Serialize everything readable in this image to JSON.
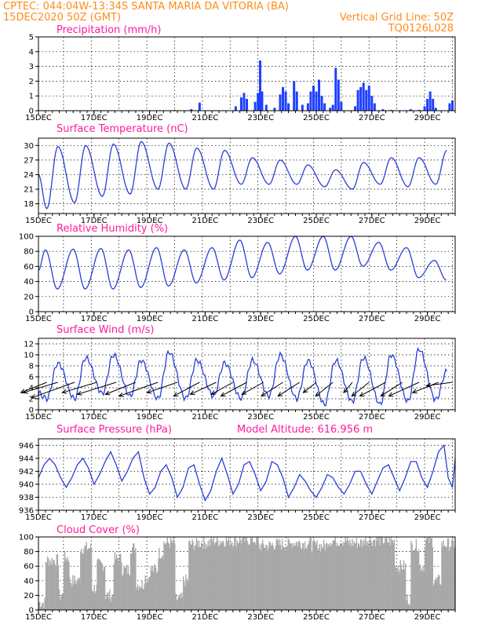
{
  "header": {
    "station": "CPTEC:   044:04W-13:34S   SANTA MARIA DA VITORIA (BA)",
    "date": "15DEC2020 50Z (GMT)",
    "grid_note": "Vertical Grid Line: 50Z",
    "code": "TQ0126L028"
  },
  "colors": {
    "title": "#ff1a9c",
    "header": "#ff8c1a",
    "line": "#2a3fd8",
    "precip": "#1f3fff",
    "cloud": "#a8a8a8"
  },
  "chart_data": [
    {
      "type": "bar",
      "title": "Precipitation (mm/h)",
      "ylim": [
        0,
        5
      ],
      "yticks": [
        0,
        1,
        2,
        3,
        4,
        5
      ],
      "xticks": [
        "15DEC",
        "17DEC",
        "19DEC",
        "21DEC",
        "23DEC",
        "25DEC",
        "27DEC",
        "29DEC"
      ],
      "x_start_day": 15.1,
      "x_end_day": 30.1,
      "events": [
        [
          20.0,
          0.05
        ],
        [
          20.6,
          0.1
        ],
        [
          20.9,
          0.55
        ],
        [
          22.2,
          0.3
        ],
        [
          22.4,
          0.9
        ],
        [
          22.5,
          1.2
        ],
        [
          22.6,
          0.8
        ],
        [
          22.9,
          0.6
        ],
        [
          23.0,
          1.2
        ],
        [
          23.08,
          3.4
        ],
        [
          23.15,
          1.3
        ],
        [
          23.3,
          0.4
        ],
        [
          23.6,
          0.2
        ],
        [
          23.8,
          1.1
        ],
        [
          23.9,
          1.6
        ],
        [
          24.0,
          1.3
        ],
        [
          24.1,
          0.5
        ],
        [
          24.3,
          2.0
        ],
        [
          24.4,
          1.3
        ],
        [
          24.6,
          0.4
        ],
        [
          24.8,
          0.5
        ],
        [
          24.9,
          1.3
        ],
        [
          25.0,
          1.7
        ],
        [
          25.1,
          1.3
        ],
        [
          25.2,
          2.1
        ],
        [
          25.3,
          1.0
        ],
        [
          25.4,
          0.5
        ],
        [
          25.6,
          0.2
        ],
        [
          25.7,
          0.4
        ],
        [
          25.8,
          2.9
        ],
        [
          25.9,
          2.1
        ],
        [
          26.0,
          0.6
        ],
        [
          26.5,
          0.3
        ],
        [
          26.6,
          1.4
        ],
        [
          26.7,
          1.6
        ],
        [
          26.8,
          1.9
        ],
        [
          26.9,
          1.4
        ],
        [
          27.0,
          1.7
        ],
        [
          27.1,
          1.0
        ],
        [
          27.2,
          0.5
        ],
        [
          27.5,
          0.1
        ],
        [
          27.8,
          0.05
        ],
        [
          28.5,
          0.1
        ],
        [
          28.8,
          0.05
        ],
        [
          29.0,
          0.3
        ],
        [
          29.1,
          0.8
        ],
        [
          29.2,
          1.3
        ],
        [
          29.3,
          0.8
        ],
        [
          29.4,
          0.2
        ],
        [
          29.9,
          0.5
        ],
        [
          30.0,
          0.7
        ]
      ]
    },
    {
      "type": "line",
      "title": "Surface Temperature (nC)",
      "ylim": [
        16,
        31.5
      ],
      "yticks": [
        18,
        21,
        24,
        27,
        30
      ],
      "xticks": [
        "15DEC",
        "17DEC",
        "19DEC",
        "21DEC",
        "23DEC",
        "25DEC",
        "27DEC",
        "29DEC"
      ],
      "x_start_day": 15.1,
      "x_end_day": 30.1,
      "daily_min": [
        17.0,
        18.2,
        19.5,
        20.0,
        21.0,
        21.0,
        21.0,
        22.0,
        22.0,
        22.0,
        21.5,
        21.0,
        22.0,
        21.5,
        22.0
      ],
      "daily_max": [
        29.8,
        30.0,
        30.3,
        30.8,
        30.5,
        29.5,
        29.0,
        27.5,
        27.0,
        26.0,
        25.0,
        26.5,
        27.5,
        27.5,
        29.0
      ],
      "start_value": 24.0
    },
    {
      "type": "line",
      "title": "Relative Humidity (%)",
      "ylim": [
        0,
        100
      ],
      "yticks": [
        0,
        20,
        40,
        60,
        80,
        100
      ],
      "xticks": [
        "15DEC",
        "17DEC",
        "19DEC",
        "21DEC",
        "23DEC",
        "25DEC",
        "27DEC",
        "29DEC"
      ],
      "x_start_day": 15.1,
      "x_end_day": 30.1,
      "daily_min": [
        30,
        30,
        30,
        32,
        34,
        38,
        42,
        45,
        50,
        55,
        55,
        60,
        55,
        45,
        42
      ],
      "daily_max": [
        82,
        83,
        84,
        82,
        85,
        82,
        85,
        95,
        92,
        100,
        100,
        100,
        92,
        85,
        68
      ],
      "start_value": 55
    },
    {
      "type": "line",
      "title": "Surface Wind (m/s)",
      "ylim": [
        0,
        13
      ],
      "yticks": [
        0,
        2,
        4,
        6,
        8,
        10,
        12
      ],
      "xticks": [
        "15DEC",
        "17DEC",
        "19DEC",
        "21DEC",
        "23DEC",
        "25DEC",
        "27DEC",
        "29DEC"
      ],
      "x_start_day": 15.1,
      "x_end_day": 30.1,
      "daily_min": [
        2.0,
        2.0,
        3.0,
        2.5,
        2.0,
        2.0,
        2.5,
        2.0,
        2.5,
        2.0,
        1.0,
        1.5,
        1.0,
        1.5,
        1.8
      ],
      "daily_max": [
        8.5,
        9.5,
        10.0,
        9.0,
        10.5,
        9.0,
        8.5,
        9.0,
        10.0,
        9.0,
        9.0,
        9.5,
        10.0,
        11.0,
        7.0
      ],
      "start_value": 3.0,
      "vectors": [
        [
          15.4,
          5,
          6,
          6
        ],
        [
          15.8,
          5,
          8,
          6
        ],
        [
          16.4,
          5,
          10,
          9
        ],
        [
          17.2,
          5,
          8,
          6
        ],
        [
          17.9,
          5,
          9,
          7
        ],
        [
          18.6,
          5,
          7,
          7
        ],
        [
          19.4,
          5,
          9,
          8
        ],
        [
          20.1,
          5,
          7,
          6
        ],
        [
          20.9,
          5,
          6,
          8
        ],
        [
          21.5,
          5,
          6,
          7
        ],
        [
          22.1,
          5,
          5,
          7
        ],
        [
          22.6,
          5,
          6,
          8
        ],
        [
          23.2,
          5,
          5,
          7
        ],
        [
          23.9,
          5,
          5,
          8
        ],
        [
          24.5,
          5,
          5,
          8
        ],
        [
          25.1,
          5,
          3,
          6
        ],
        [
          25.7,
          5,
          4,
          8
        ],
        [
          26.4,
          5,
          2,
          6
        ],
        [
          27.0,
          5,
          4,
          8
        ],
        [
          27.6,
          5,
          6,
          8
        ],
        [
          28.2,
          5,
          5,
          8
        ],
        [
          28.8,
          5,
          7,
          8
        ],
        [
          29.5,
          5,
          6,
          6
        ],
        [
          30.0,
          5,
          6,
          2
        ]
      ]
    },
    {
      "type": "line",
      "title": "Surface Pressure (hPa)",
      "annotation": "Model Altitude: 616.956  m",
      "ylim": [
        936,
        947
      ],
      "yticks": [
        936,
        938,
        940,
        942,
        944,
        946
      ],
      "xticks": [
        "15DEC",
        "17DEC",
        "19DEC",
        "21DEC",
        "23DEC",
        "25DEC",
        "27DEC",
        "29DEC"
      ],
      "x_start_day": 15.1,
      "x_end_day": 30.1,
      "series": [
        [
          15.1,
          941
        ],
        [
          15.3,
          943
        ],
        [
          15.5,
          944
        ],
        [
          15.7,
          943
        ],
        [
          15.9,
          941
        ],
        [
          16.1,
          939.5
        ],
        [
          16.3,
          941
        ],
        [
          16.5,
          943
        ],
        [
          16.7,
          944
        ],
        [
          16.9,
          942.5
        ],
        [
          17.1,
          940
        ],
        [
          17.3,
          941.5
        ],
        [
          17.5,
          943.5
        ],
        [
          17.7,
          945
        ],
        [
          17.9,
          943
        ],
        [
          18.1,
          940.5
        ],
        [
          18.3,
          942
        ],
        [
          18.5,
          944
        ],
        [
          18.7,
          945
        ],
        [
          18.9,
          941
        ],
        [
          19.1,
          938.5
        ],
        [
          19.3,
          939.5
        ],
        [
          19.5,
          942
        ],
        [
          19.7,
          943
        ],
        [
          19.9,
          941
        ],
        [
          20.1,
          938
        ],
        [
          20.3,
          939.5
        ],
        [
          20.5,
          942.5
        ],
        [
          20.7,
          943
        ],
        [
          20.9,
          940
        ],
        [
          21.1,
          937.5
        ],
        [
          21.3,
          939
        ],
        [
          21.5,
          942
        ],
        [
          21.7,
          944
        ],
        [
          21.9,
          941.5
        ],
        [
          22.1,
          938.5
        ],
        [
          22.3,
          940
        ],
        [
          22.5,
          943
        ],
        [
          22.7,
          943.5
        ],
        [
          22.9,
          941.5
        ],
        [
          23.1,
          939
        ],
        [
          23.3,
          940.5
        ],
        [
          23.5,
          943.5
        ],
        [
          23.7,
          943
        ],
        [
          23.9,
          941
        ],
        [
          24.1,
          938
        ],
        [
          24.3,
          939.5
        ],
        [
          24.5,
          941.5
        ],
        [
          24.7,
          940.5
        ],
        [
          24.9,
          939
        ],
        [
          25.1,
          938
        ],
        [
          25.3,
          939.5
        ],
        [
          25.5,
          941.5
        ],
        [
          25.7,
          941
        ],
        [
          25.9,
          939.5
        ],
        [
          26.1,
          938.5
        ],
        [
          26.3,
          940
        ],
        [
          26.5,
          942
        ],
        [
          26.7,
          942
        ],
        [
          26.9,
          940
        ],
        [
          27.1,
          938.5
        ],
        [
          27.3,
          940.5
        ],
        [
          27.5,
          942.5
        ],
        [
          27.7,
          943
        ],
        [
          27.9,
          941
        ],
        [
          28.1,
          939
        ],
        [
          28.3,
          941
        ],
        [
          28.5,
          943.5
        ],
        [
          28.7,
          943.5
        ],
        [
          28.9,
          941
        ],
        [
          29.1,
          939.5
        ],
        [
          29.3,
          942
        ],
        [
          29.5,
          945
        ],
        [
          29.7,
          946
        ],
        [
          29.85,
          941
        ],
        [
          30.0,
          939.5
        ],
        [
          30.1,
          944
        ]
      ]
    },
    {
      "type": "bar",
      "title": "Cloud Cover (%)",
      "ylim": [
        0,
        100
      ],
      "yticks": [
        0,
        20,
        40,
        60,
        80,
        100
      ],
      "xticks": [
        "15DEC",
        "17DEC",
        "19DEC",
        "21DEC",
        "23DEC",
        "25DEC",
        "27DEC",
        "29DEC"
      ],
      "x_start_day": 15.1,
      "x_end_day": 30.1,
      "segments": [
        [
          15.1,
          15.35,
          10
        ],
        [
          15.35,
          15.8,
          68
        ],
        [
          15.8,
          16.0,
          20
        ],
        [
          16.0,
          16.2,
          72
        ],
        [
          16.2,
          16.6,
          40
        ],
        [
          16.6,
          17.0,
          85
        ],
        [
          17.0,
          17.2,
          30
        ],
        [
          17.2,
          17.5,
          62
        ],
        [
          17.5,
          17.8,
          20
        ],
        [
          17.8,
          18.1,
          70
        ],
        [
          18.1,
          18.4,
          55
        ],
        [
          18.4,
          18.6,
          85
        ],
        [
          18.6,
          18.9,
          35
        ],
        [
          18.9,
          19.1,
          45
        ],
        [
          19.1,
          19.4,
          55
        ],
        [
          19.4,
          19.6,
          78
        ],
        [
          19.6,
          20.0,
          92
        ],
        [
          20.0,
          20.3,
          15
        ],
        [
          20.3,
          20.5,
          40
        ],
        [
          20.5,
          20.8,
          90
        ],
        [
          20.8,
          21.3,
          92
        ],
        [
          21.3,
          22.3,
          95
        ],
        [
          22.3,
          23.0,
          96
        ],
        [
          23.0,
          23.5,
          88
        ],
        [
          23.5,
          24.2,
          90
        ],
        [
          24.2,
          24.9,
          92
        ],
        [
          24.9,
          25.5,
          88
        ],
        [
          25.5,
          26.2,
          95
        ],
        [
          26.2,
          26.8,
          92
        ],
        [
          26.8,
          27.5,
          96
        ],
        [
          27.5,
          27.9,
          94
        ],
        [
          27.9,
          28.3,
          60
        ],
        [
          28.3,
          28.5,
          15
        ],
        [
          28.5,
          28.8,
          88
        ],
        [
          28.8,
          29.0,
          60
        ],
        [
          29.0,
          29.3,
          95
        ],
        [
          29.3,
          29.6,
          40
        ],
        [
          29.6,
          30.1,
          90
        ]
      ]
    }
  ]
}
